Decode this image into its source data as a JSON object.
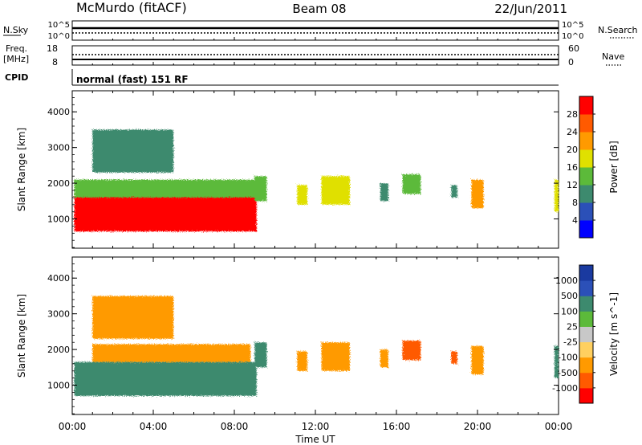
{
  "header": {
    "station": "McMurdo (fitACF)",
    "beam": "Beam 08",
    "date": "22/Jun/2011"
  },
  "noise_panel": {
    "left_label": "N.Sky",
    "right_label": "N.Search",
    "left_ticks": [
      "10^5",
      "10^0"
    ],
    "right_ticks": [
      "10^5",
      "10^0"
    ]
  },
  "freq_panel": {
    "left_label_1": "Freq.",
    "left_label_2": "[MHz]",
    "right_label": "Nave",
    "left_ticks": [
      "18",
      "8"
    ],
    "right_ticks": [
      "60",
      "0"
    ]
  },
  "cpid": {
    "label": "CPID",
    "value": "normal (fast) 151 RF"
  },
  "x_axis": {
    "title": "Time UT",
    "ticks": [
      "00:00",
      "04:00",
      "08:00",
      "12:00",
      "16:00",
      "20:00",
      "00:00"
    ]
  },
  "colors": {
    "power_scale": [
      "#0000ff",
      "#2b50b8",
      "#3d8a6e",
      "#5cba3a",
      "#e0e000",
      "#ff9a00",
      "#ff5a00",
      "#ff0000"
    ],
    "velocity_scale": [
      "#ff0000",
      "#ff5a00",
      "#ff9a00",
      "#ffd060",
      "#c8c8c8",
      "#5cba3a",
      "#3d8a6e",
      "#2b50b8",
      "#1a3aa0"
    ]
  },
  "chart_data": [
    {
      "type": "heatmap",
      "title": "Power",
      "xlabel": "Time UT",
      "ylabel": "Slant Range [km]",
      "xlim": [
        "00:00",
        "24:00"
      ],
      "ylim": [
        180,
        4590
      ],
      "yticks": [
        "1000",
        "2000",
        "3000",
        "4000"
      ],
      "colorbar": {
        "label": "Power [dB]",
        "ticks": [
          "4",
          "8",
          "12",
          "16",
          "20",
          "24",
          "28"
        ],
        "range": [
          0,
          32
        ]
      },
      "regions": [
        {
          "start_h": 0.1,
          "end_h": 9.1,
          "range_km": [
            650,
            1750
          ],
          "power_db": 30
        },
        {
          "start_h": 0.1,
          "end_h": 9.4,
          "range_km": [
            1600,
            2100
          ],
          "power_db": 14
        },
        {
          "start_h": 1.0,
          "end_h": 5.0,
          "range_km": [
            2300,
            3500
          ],
          "power_db": 8
        },
        {
          "start_h": 9.0,
          "end_h": 9.6,
          "range_km": [
            1500,
            2200
          ],
          "power_db": 12
        },
        {
          "start_h": 11.1,
          "end_h": 11.6,
          "range_km": [
            1400,
            1950
          ],
          "power_db": 18
        },
        {
          "start_h": 12.3,
          "end_h": 13.7,
          "range_km": [
            1400,
            2200
          ],
          "power_db": 16
        },
        {
          "start_h": 15.2,
          "end_h": 15.6,
          "range_km": [
            1500,
            2000
          ],
          "power_db": 8
        },
        {
          "start_h": 16.3,
          "end_h": 17.2,
          "range_km": [
            1700,
            2250
          ],
          "power_db": 14
        },
        {
          "start_h": 18.7,
          "end_h": 19.0,
          "range_km": [
            1600,
            1950
          ],
          "power_db": 8
        },
        {
          "start_h": 19.7,
          "end_h": 20.3,
          "range_km": [
            1300,
            2100
          ],
          "power_db": 20
        },
        {
          "start_h": 23.8,
          "end_h": 24.0,
          "range_km": [
            1200,
            2100
          ],
          "power_db": 18
        }
      ]
    },
    {
      "type": "heatmap",
      "title": "Velocity",
      "xlabel": "Time UT",
      "ylabel": "Slant Range [km]",
      "xlim": [
        "00:00",
        "24:00"
      ],
      "ylim": [
        180,
        4590
      ],
      "yticks": [
        "1000",
        "2000",
        "3000",
        "4000"
      ],
      "colorbar": {
        "label": "Velocity [m s^-1]",
        "ticks": [
          "1000",
          "500",
          "100",
          "25",
          "-25",
          "-100",
          "-500",
          "-1000"
        ]
      },
      "regions": [
        {
          "start_h": 0.1,
          "end_h": 9.1,
          "range_km": [
            700,
            1650
          ],
          "velocity_ms": 300
        },
        {
          "start_h": 1.0,
          "end_h": 8.8,
          "range_km": [
            1650,
            2150
          ],
          "velocity_ms": -150
        },
        {
          "start_h": 1.0,
          "end_h": 5.0,
          "range_km": [
            2300,
            3500
          ],
          "velocity_ms": -100
        },
        {
          "start_h": 9.0,
          "end_h": 9.6,
          "range_km": [
            1500,
            2200
          ],
          "velocity_ms": 200
        },
        {
          "start_h": 11.1,
          "end_h": 11.6,
          "range_km": [
            1400,
            1950
          ],
          "velocity_ms": -150
        },
        {
          "start_h": 12.3,
          "end_h": 13.7,
          "range_km": [
            1400,
            2200
          ],
          "velocity_ms": -200
        },
        {
          "start_h": 15.2,
          "end_h": 15.6,
          "range_km": [
            1500,
            2000
          ],
          "velocity_ms": -400
        },
        {
          "start_h": 16.3,
          "end_h": 17.2,
          "range_km": [
            1700,
            2250
          ],
          "velocity_ms": -600
        },
        {
          "start_h": 18.7,
          "end_h": 19.0,
          "range_km": [
            1600,
            1950
          ],
          "velocity_ms": -600
        },
        {
          "start_h": 19.7,
          "end_h": 20.3,
          "range_km": [
            1300,
            2100
          ],
          "velocity_ms": -300
        },
        {
          "start_h": 23.8,
          "end_h": 24.0,
          "range_km": [
            1200,
            2100
          ],
          "velocity_ms": 300
        }
      ]
    }
  ]
}
